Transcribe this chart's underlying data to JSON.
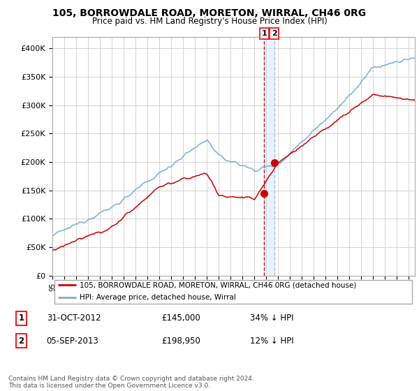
{
  "title": "105, BORROWDALE ROAD, MORETON, WIRRAL, CH46 0RG",
  "subtitle": "Price paid vs. HM Land Registry's House Price Index (HPI)",
  "ylabel_ticks": [
    "£0",
    "£50K",
    "£100K",
    "£150K",
    "£200K",
    "£250K",
    "£300K",
    "£350K",
    "£400K"
  ],
  "ytick_vals": [
    0,
    50000,
    100000,
    150000,
    200000,
    250000,
    300000,
    350000,
    400000
  ],
  "ylim": [
    0,
    420000
  ],
  "xlim_start": 1995.0,
  "xlim_end": 2025.5,
  "hpi_color": "#7aafd4",
  "sold_color": "#cc0000",
  "legend_label_sold": "105, BORROWDALE ROAD, MORETON, WIRRAL, CH46 0RG (detached house)",
  "legend_label_hpi": "HPI: Average price, detached house, Wirral",
  "sale1_label": "1",
  "sale1_date": "31-OCT-2012",
  "sale1_price": "£145,000",
  "sale1_hpi": "34% ↓ HPI",
  "sale2_label": "2",
  "sale2_date": "05-SEP-2013",
  "sale2_price": "£198,950",
  "sale2_hpi": "12% ↓ HPI",
  "footer": "Contains HM Land Registry data © Crown copyright and database right 2024.\nThis data is licensed under the Open Government Licence v3.0.",
  "sale1_x": 2012.83,
  "sale1_y": 145000,
  "sale2_x": 2013.67,
  "sale2_y": 198950,
  "vline1_x": 2012.83,
  "vline2_x": 2013.67
}
